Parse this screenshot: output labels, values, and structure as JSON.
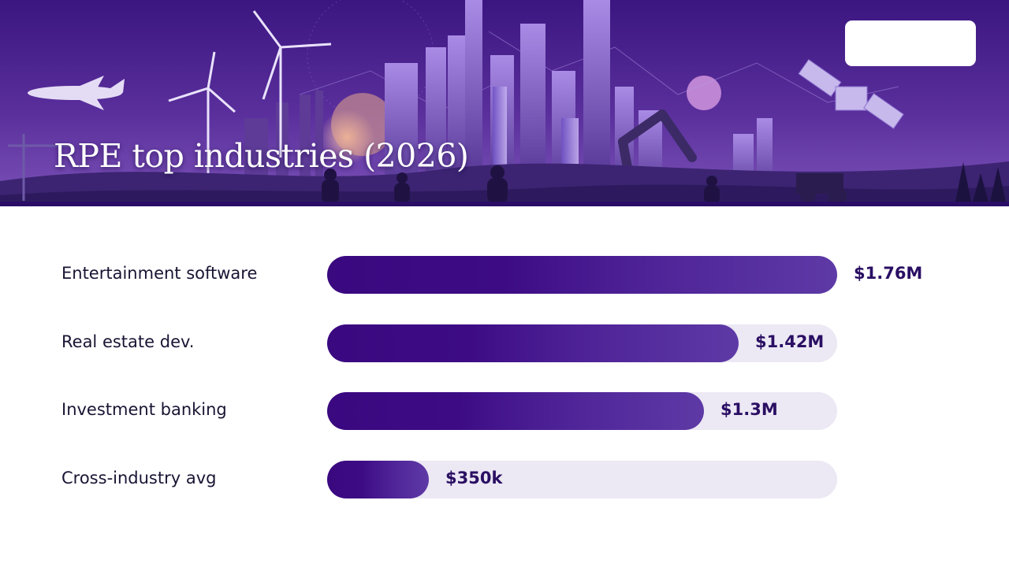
{
  "title": "RPE top industries (2026)",
  "colors": {
    "bar_start": "#3a087f",
    "bar_end": "#5e3aa6",
    "track": "#ece8f4",
    "value_text": "#2a0f63",
    "hero_bg": "#3a1a7a"
  },
  "chart_data": {
    "type": "bar",
    "orientation": "horizontal",
    "title": "RPE top industries (2026)",
    "categories": [
      "Entertainment software",
      "Real estate dev.",
      "Investment banking",
      "Cross-industry avg"
    ],
    "values": [
      1.76,
      1.42,
      1.3,
      0.35
    ],
    "value_labels": [
      "$1.76M",
      "$1.42M",
      "$1.3M",
      "$350k"
    ],
    "unit": "$M",
    "xlim": [
      0,
      1.76
    ],
    "grid": false,
    "legend": "none"
  }
}
